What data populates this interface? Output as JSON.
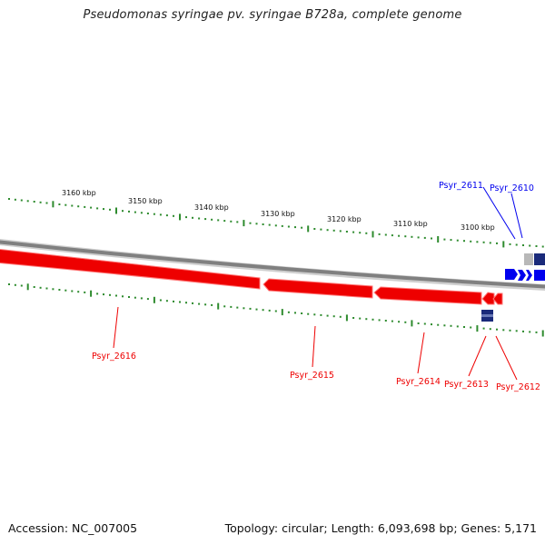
{
  "title": "Pseudomonas syringae pv. syringae B728a, complete genome",
  "accession": "Accession: NC_007005",
  "summary": "Topology: circular; Length: 6,093,698 bp; Genes: 5,171",
  "colors": {
    "forward_gene": "#0000ee",
    "reverse_gene": "#ee0000",
    "tick": "#2e8b2e",
    "backbone": "#888888"
  },
  "scale": {
    "unit": "kbp",
    "labels": [
      "3160 kbp",
      "3150 kbp",
      "3140 kbp",
      "3130 kbp",
      "3120 kbp",
      "3110 kbp",
      "3100 kbp"
    ]
  },
  "forward_genes": [
    "Psyr_2611",
    "Psyr_2610"
  ],
  "reverse_genes": [
    "Psyr_2616",
    "Psyr_2615",
    "Psyr_2614",
    "Psyr_2613",
    "Psyr_2612"
  ]
}
